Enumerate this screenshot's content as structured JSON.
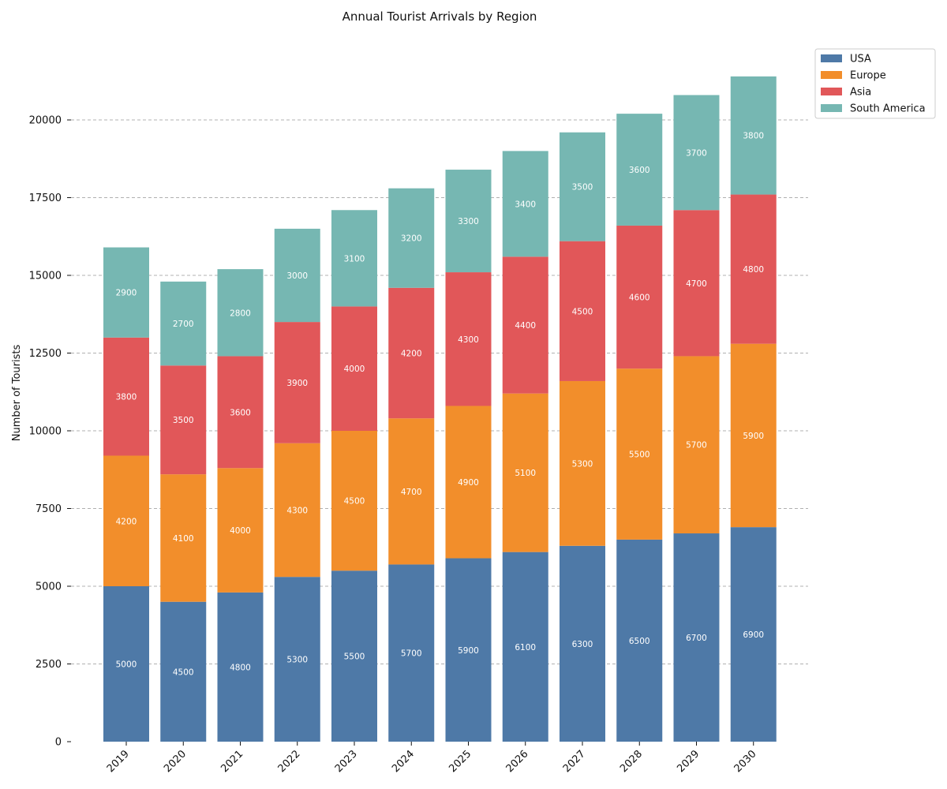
{
  "chart_data": {
    "type": "bar",
    "stacked": true,
    "title": "Annual Tourist Arrivals by Region",
    "xlabel": "",
    "ylabel": "Number of Tourists",
    "ylim": [
      0,
      21400
    ],
    "yticks": [
      0,
      2500,
      5000,
      7500,
      10000,
      12500,
      15000,
      17500,
      20000
    ],
    "grid": "y-dashed",
    "legend_position": "top-right, outside plot",
    "categories": [
      "2019",
      "2020",
      "2021",
      "2022",
      "2023",
      "2024",
      "2025",
      "2026",
      "2027",
      "2028",
      "2029",
      "2030"
    ],
    "series": [
      {
        "name": "USA",
        "color": "#4e79a7",
        "values": [
          5000,
          4500,
          4800,
          5300,
          5500,
          5700,
          5900,
          6100,
          6300,
          6500,
          6700,
          6900
        ]
      },
      {
        "name": "Europe",
        "color": "#f28e2b",
        "values": [
          4200,
          4100,
          4000,
          4300,
          4500,
          4700,
          4900,
          5100,
          5300,
          5500,
          5700,
          5900
        ]
      },
      {
        "name": "Asia",
        "color": "#e15759",
        "values": [
          3800,
          3500,
          3600,
          3900,
          4000,
          4200,
          4300,
          4400,
          4500,
          4600,
          4700,
          4800
        ]
      },
      {
        "name": "South America",
        "color": "#76b7b2",
        "values": [
          2900,
          2700,
          2800,
          3000,
          3100,
          3200,
          3300,
          3400,
          3500,
          3600,
          3700,
          3800
        ]
      }
    ]
  }
}
